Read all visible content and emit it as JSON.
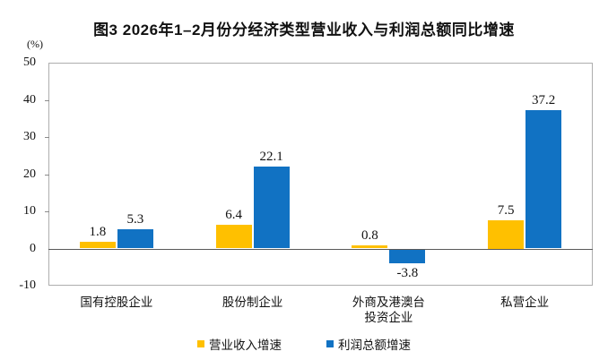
{
  "title": "图3 2026年1–2月份分经济类型营业收入与利润总额同比增速",
  "unit_label": "(%)",
  "chart_data": {
    "type": "bar",
    "title": "图3 2026年1–2月份分经济类型营业收入与利润总额同比增速",
    "ylabel": "(%)",
    "categories": [
      "国有控股企业",
      "股份制企业",
      "外商及港澳台\n投资企业",
      "私营企业"
    ],
    "series": [
      {
        "name": "营业收入增速",
        "color": "#FFC000",
        "values": [
          1.8,
          6.4,
          0.8,
          7.5
        ]
      },
      {
        "name": "利润总额增速",
        "color": "#1172C3",
        "values": [
          5.3,
          22.1,
          -3.8,
          37.2
        ]
      }
    ],
    "ylim": [
      -10,
      50
    ],
    "ytick_step": 10,
    "grid": false,
    "legend_position": "bottom",
    "data_labels": true
  },
  "colors": {
    "plot_border": "#aeaeae",
    "zero_line": "#595959",
    "text": "#111111"
  }
}
